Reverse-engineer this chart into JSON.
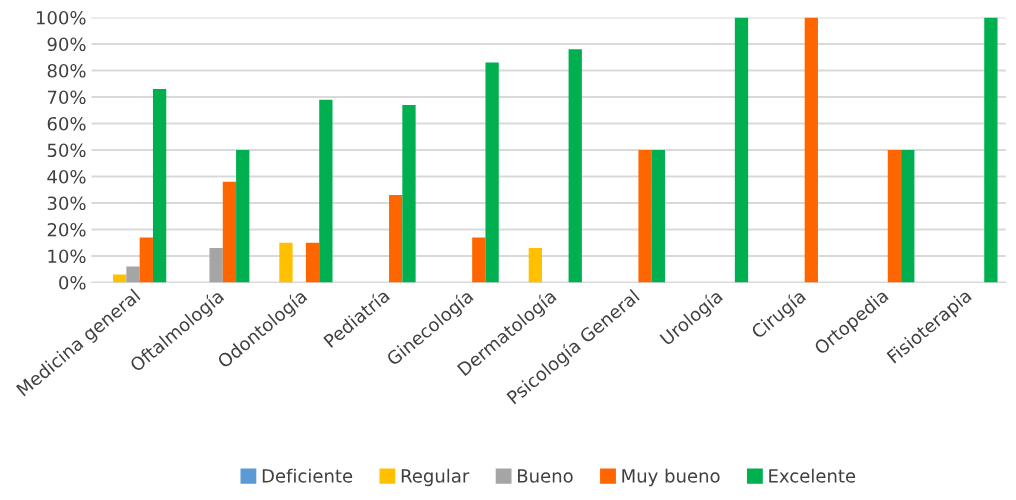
{
  "chart_data": {
    "type": "bar",
    "categories": [
      "Medicina general",
      "Oftalmología",
      "Odontología",
      "Pediatría",
      "Ginecología",
      "Dermatología",
      "Psicología General",
      "Urología",
      "Cirugía",
      "Ortopedia",
      "Fisioterapia"
    ],
    "series": [
      {
        "name": "Deficiente",
        "color": "#5b9bd5",
        "values": [
          0,
          0,
          0,
          0,
          0,
          0,
          0,
          0,
          0,
          0,
          0
        ]
      },
      {
        "name": "Regular",
        "color": "#ffc000",
        "values": [
          3,
          0,
          15,
          0,
          0,
          13,
          0,
          0,
          0,
          0,
          0
        ]
      },
      {
        "name": "Bueno",
        "color": "#a5a5a5",
        "values": [
          6,
          13,
          0,
          0,
          0,
          0,
          0,
          0,
          0,
          0,
          0
        ]
      },
      {
        "name": "Muy bueno",
        "color": "#ff6600",
        "values": [
          17,
          38,
          15,
          33,
          17,
          0,
          50,
          0,
          100,
          50,
          0
        ]
      },
      {
        "name": "Excelente",
        "color": "#00b050",
        "values": [
          73,
          50,
          69,
          67,
          83,
          88,
          50,
          100,
          0,
          50,
          100
        ]
      }
    ],
    "ylim": [
      0,
      100
    ],
    "yticks": [
      {
        "value": 0,
        "label": "0%"
      },
      {
        "value": 10,
        "label": "10%"
      },
      {
        "value": 20,
        "label": "20%"
      },
      {
        "value": 30,
        "label": "30%"
      },
      {
        "value": 40,
        "label": "40%"
      },
      {
        "value": 50,
        "label": "50%"
      },
      {
        "value": 60,
        "label": "60%"
      },
      {
        "value": 70,
        "label": "70%"
      },
      {
        "value": 80,
        "label": "80%"
      },
      {
        "value": 90,
        "label": "90%"
      },
      {
        "value": 100,
        "label": "100%"
      }
    ],
    "grid": "y",
    "legend": "bottom"
  }
}
